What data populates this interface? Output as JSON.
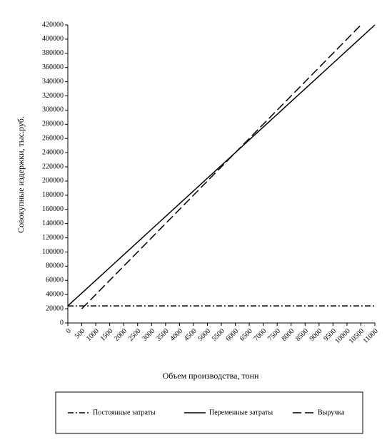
{
  "chart_data": {
    "type": "line",
    "y_label": "Совокупные издержки, тыс.руб.",
    "x_label": "Объем производства, тонн",
    "x": [
      0,
      500,
      1000,
      1500,
      2000,
      2500,
      3000,
      3500,
      4000,
      4500,
      5000,
      5500,
      6000,
      6500,
      7000,
      7500,
      8000,
      8500,
      9000,
      9500,
      10000,
      10500,
      11000
    ],
    "xlim": [
      0,
      11000
    ],
    "xticks": [
      0,
      500,
      1000,
      1500,
      2000,
      2500,
      3000,
      3500,
      4000,
      4500,
      5000,
      5500,
      6000,
      6500,
      7000,
      7500,
      8000,
      8500,
      9000,
      9500,
      10000,
      10500,
      11000
    ],
    "ylim": [
      0,
      420000
    ],
    "yticks": [
      0,
      20000,
      40000,
      60000,
      80000,
      100000,
      120000,
      140000,
      160000,
      180000,
      200000,
      220000,
      240000,
      260000,
      280000,
      300000,
      320000,
      340000,
      360000,
      380000,
      400000,
      420000
    ],
    "series": [
      {
        "name": "Постоянные затраты",
        "color": "#000000",
        "style": "dashdot",
        "values": [
          24000,
          24000,
          24000,
          24000,
          24000,
          24000,
          24000,
          24000,
          24000,
          24000,
          24000,
          24000,
          24000,
          24000,
          24000,
          24000,
          24000,
          24000,
          24000,
          24000,
          24000,
          24000,
          24000
        ]
      },
      {
        "name": "Переменные затраты",
        "color": "#000000",
        "style": "solid",
        "values": [
          24000,
          42000,
          60000,
          78000,
          96000,
          114000,
          132000,
          150000,
          168000,
          186000,
          204000,
          222000,
          240000,
          258000,
          276000,
          294000,
          312000,
          330000,
          348000,
          366000,
          384000,
          402000,
          420000
        ]
      },
      {
        "name": "Выручка",
        "color": "#000000",
        "style": "dashed",
        "values": [
          null,
          20000,
          40000,
          60000,
          80000,
          100000,
          120000,
          140000,
          160000,
          180000,
          200000,
          220000,
          240000,
          260000,
          280000,
          300000,
          320000,
          340000,
          360000,
          380000,
          400000,
          420000,
          null
        ]
      }
    ],
    "legend": "bottom"
  }
}
